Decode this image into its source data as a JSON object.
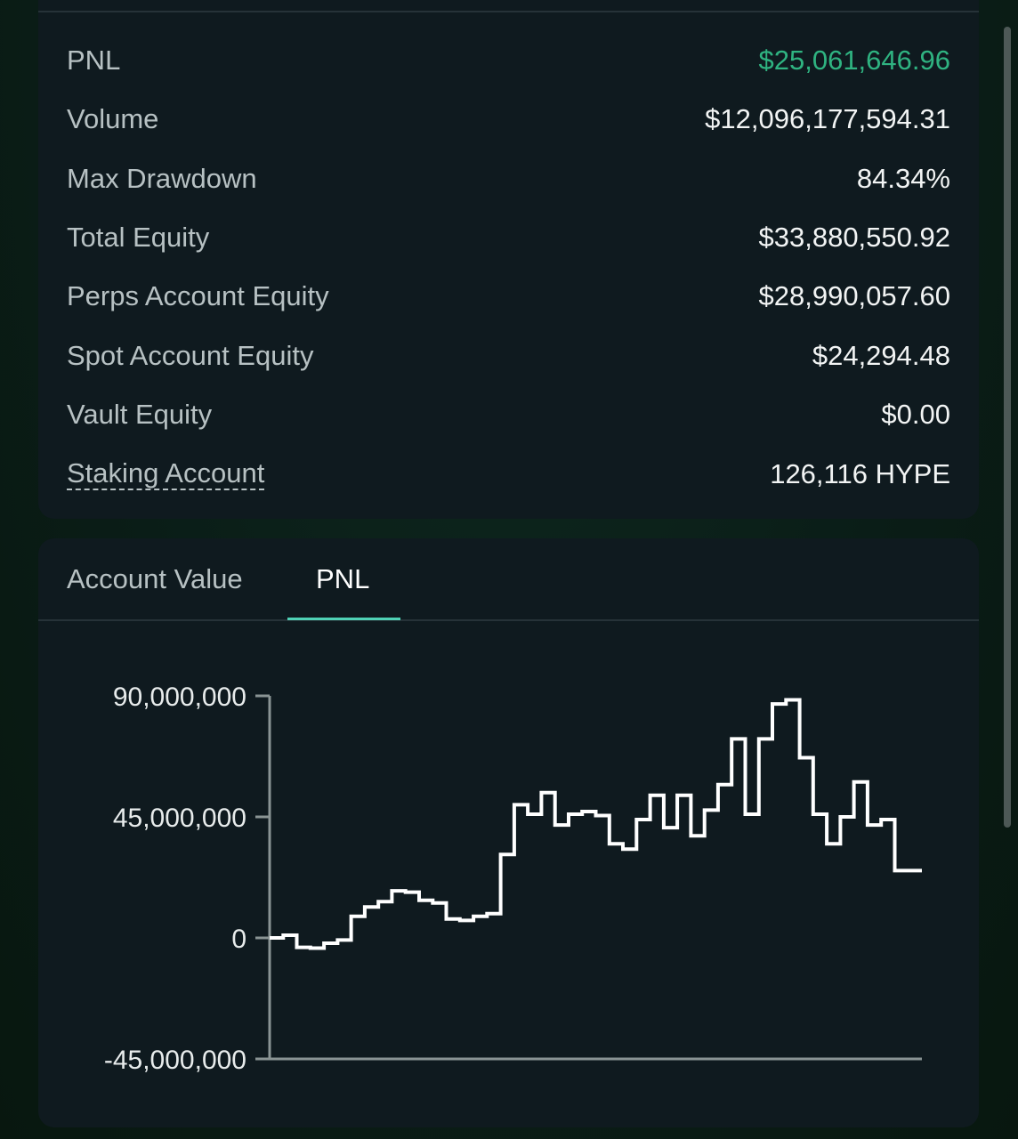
{
  "stats": [
    {
      "label": "PNL",
      "value": "$25,061,646.96",
      "positive": true
    },
    {
      "label": "Volume",
      "value": "$12,096,177,594.31"
    },
    {
      "label": "Max Drawdown",
      "value": "84.34%"
    },
    {
      "label": "Total Equity",
      "value": "$33,880,550.92"
    },
    {
      "label": "Perps Account Equity",
      "value": "$28,990,057.60"
    },
    {
      "label": "Spot Account Equity",
      "value": "$24,294.48"
    },
    {
      "label": "Vault Equity",
      "value": "$0.00"
    },
    {
      "label": "Staking Account",
      "value": "126,116 HYPE",
      "dashed": true
    }
  ],
  "tabs": [
    {
      "label": "Account Value",
      "active": false
    },
    {
      "label": "PNL",
      "active": true
    }
  ],
  "colors": {
    "positive": "#2fb381",
    "accent": "#4fd1b5",
    "line": "#ffffff"
  },
  "chart_data": {
    "type": "line",
    "step": true,
    "title": "",
    "xlabel": "",
    "ylabel": "",
    "ylim": [
      -45000000,
      90000000
    ],
    "yticks": [
      {
        "value": 90000000,
        "label": "90,000,000"
      },
      {
        "value": 45000000,
        "label": "45,000,000"
      },
      {
        "value": 0,
        "label": "0"
      },
      {
        "value": -45000000,
        "label": "-45,000,000"
      }
    ],
    "grid": false,
    "series": [
      {
        "values": [
          0,
          1000000,
          -3500000,
          -3800000,
          -2000000,
          -800000,
          8000000,
          11500000,
          13500000,
          17500000,
          17000000,
          14000000,
          13000000,
          7000000,
          6500000,
          8000000,
          9000000,
          31000000,
          49500000,
          46000000,
          54000000,
          42000000,
          46000000,
          47000000,
          45500000,
          35000000,
          33000000,
          44000000,
          53000000,
          41000000,
          53000000,
          38000000,
          47500000,
          57000000,
          74000000,
          46000000,
          74000000,
          87000000,
          88500000,
          67000000,
          46000000,
          35000000,
          45000000,
          58000000,
          42000000,
          44000000,
          25000000,
          25000000
        ]
      }
    ]
  }
}
